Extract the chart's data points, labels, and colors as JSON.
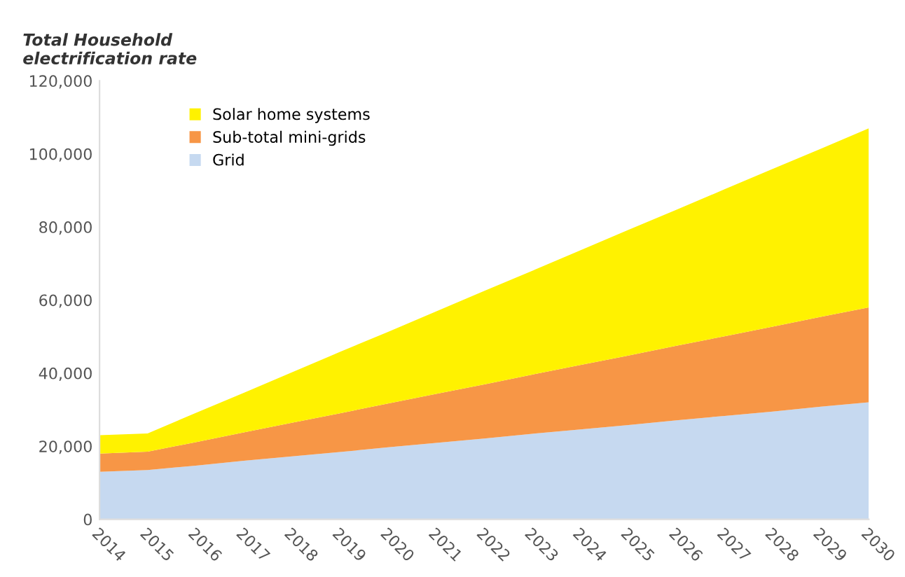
{
  "chart_data": {
    "type": "area",
    "stacked": true,
    "ylabel": "Total Household\nelectrification rate",
    "categories": [
      "2014",
      "2015",
      "2016",
      "2017",
      "2018",
      "2019",
      "2020",
      "2021",
      "2022",
      "2023",
      "2024",
      "2025",
      "2026",
      "2027",
      "2028",
      "2029",
      "2030"
    ],
    "series": [
      {
        "name": "Grid",
        "color": "#c6d9f0",
        "values": [
          13000,
          13500,
          14700,
          16000,
          17200,
          18400,
          19700,
          20900,
          22100,
          23400,
          24600,
          25800,
          27100,
          28300,
          29500,
          30800,
          32000
        ]
      },
      {
        "name": "Sub-total mini-grids",
        "color": "#f79646",
        "values": [
          5000,
          5000,
          6400,
          7800,
          9200,
          10600,
          12000,
          13400,
          14800,
          16200,
          17600,
          19000,
          20400,
          21800,
          23200,
          24600,
          26000
        ]
      },
      {
        "name": "Solar home systems",
        "color": "#fff200",
        "values": [
          5000,
          5000,
          8000,
          10800,
          13800,
          16800,
          19600,
          22600,
          25600,
          28400,
          31400,
          34400,
          37200,
          40200,
          43200,
          46000,
          49000
        ]
      }
    ],
    "ylim": [
      0,
      120000
    ],
    "yticks": [
      0,
      {
        "value": 20000,
        "label": "20,000"
      },
      {
        "value": 40000,
        "label": "40,000"
      },
      {
        "value": 60000,
        "label": "60,000"
      },
      {
        "value": 80000,
        "label": "80,000"
      },
      {
        "value": 100000,
        "label": "100,000"
      },
      {
        "value": 120000,
        "label": "120,000"
      }
    ],
    "grid": false,
    "legend": "top left"
  }
}
